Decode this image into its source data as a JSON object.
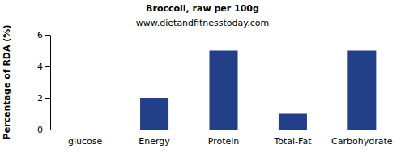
{
  "chart_data": {
    "type": "bar",
    "title": "Broccoli, raw per 100g",
    "subtitle": "www.dietandfitnesstoday.com",
    "y_label": "Percentage of RDA (%)",
    "categories": [
      "glucose",
      "Energy",
      "Protein",
      "Total-Fat",
      "Carbohydrate"
    ],
    "values": [
      0,
      2,
      5,
      1,
      5
    ],
    "color": "#233f8a",
    "ylim": [
      0,
      6
    ],
    "yticks": [
      0,
      2,
      4,
      6
    ],
    "grid": false
  }
}
